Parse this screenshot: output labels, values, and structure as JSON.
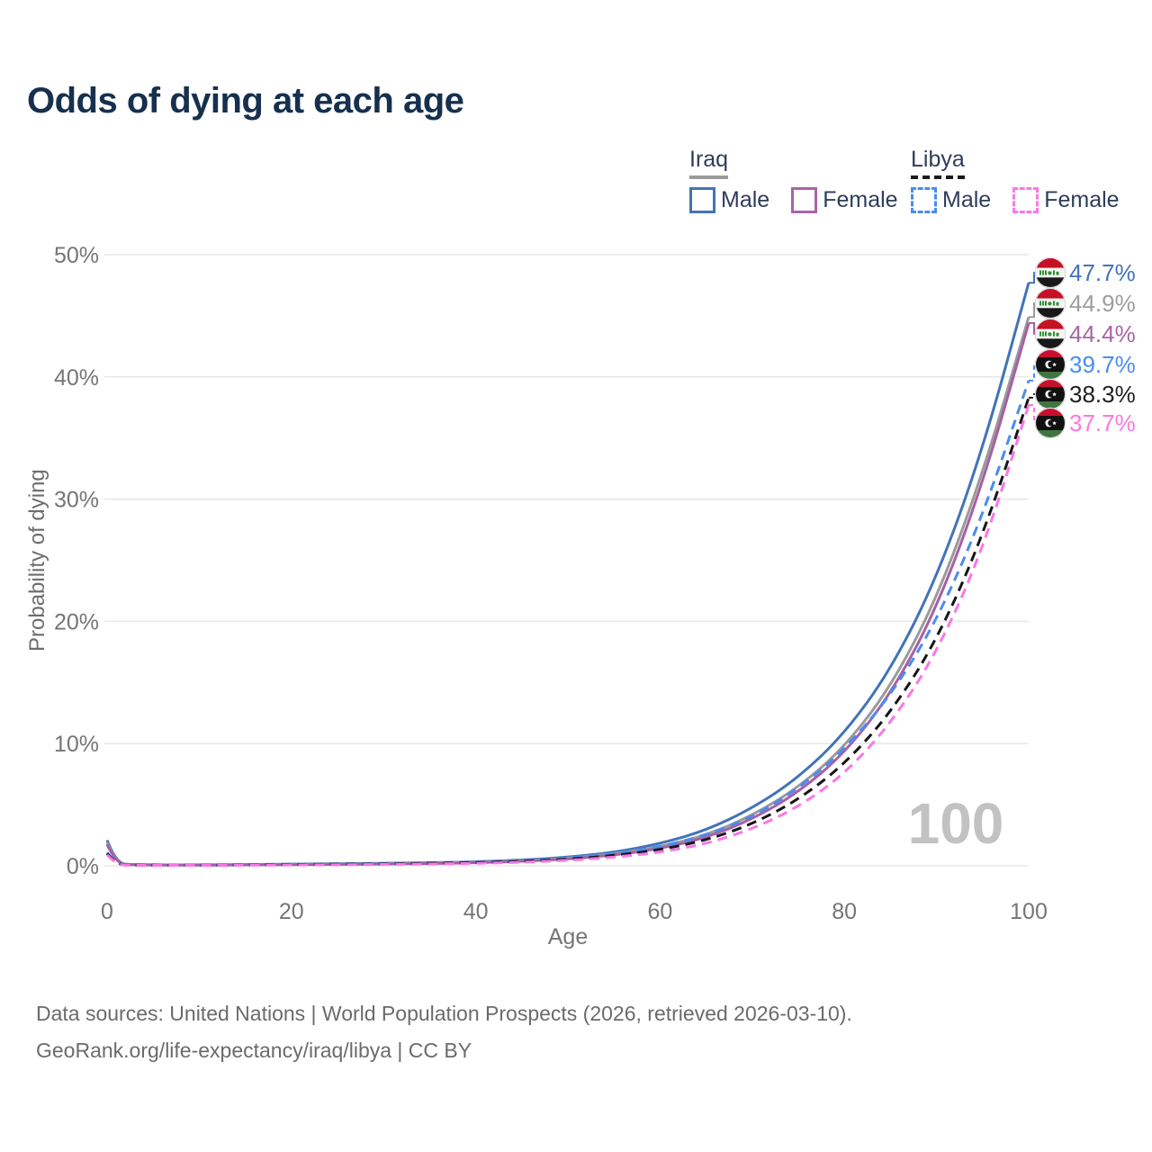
{
  "header": {
    "title": "Odds of dying at each age"
  },
  "legend": {
    "groups": [
      {
        "label": "Iraq",
        "underline_style": "solid",
        "underline_color": "#9b9b9b",
        "items": [
          {
            "label": "Male",
            "color": "#4273b8",
            "style": "solid"
          },
          {
            "label": "Female",
            "color": "#aa64a6",
            "style": "solid"
          }
        ]
      },
      {
        "label": "Libya",
        "underline_style": "dashed",
        "underline_color": "#1a1a1a",
        "items": [
          {
            "label": "Male",
            "color": "#4a8cf0",
            "style": "dashed"
          },
          {
            "label": "Female",
            "color": "#fb78e4",
            "style": "dashed"
          }
        ]
      }
    ]
  },
  "chart_data": {
    "type": "line",
    "title": "Odds of dying at each age",
    "xlabel": "Age",
    "ylabel": "Probability of dying",
    "xlim": [
      0,
      100
    ],
    "ylim": [
      0,
      50
    ],
    "x_ticks": [
      0,
      20,
      40,
      60,
      80,
      100
    ],
    "y_tick_values": [
      0,
      10,
      20,
      30,
      40,
      50
    ],
    "y_tick_labels": [
      "0%",
      "10%",
      "20%",
      "30%",
      "40%",
      "50%"
    ],
    "grid": "horizontal",
    "legend_position": "top-right",
    "watermark": "100",
    "ages": [
      0,
      1,
      3,
      5,
      10,
      15,
      20,
      25,
      30,
      35,
      40,
      45,
      50,
      55,
      60,
      65,
      70,
      75,
      80,
      85,
      90,
      95,
      100
    ],
    "series": [
      {
        "name": "Iraq Male",
        "country": "Iraq",
        "sex": "male",
        "line_style": "solid",
        "color": "#4273b8",
        "label_color": "#4273b8",
        "end_label": "47.7%",
        "end_value": 47.7,
        "values": [
          2.1,
          0.16,
          0.1,
          0.08,
          0.07,
          0.1,
          0.14,
          0.17,
          0.2,
          0.25,
          0.33,
          0.47,
          0.7,
          1.1,
          1.8,
          2.9,
          4.7,
          7.2,
          10.8,
          16.0,
          23.5,
          34.0,
          47.7
        ]
      },
      {
        "name": "Iraq Both sexes",
        "country": "Iraq",
        "sex": "both",
        "line_style": "solid",
        "color": "#9a9a9a",
        "label_color": "#9e9e9e",
        "end_label": "44.9%",
        "end_value": 44.9,
        "values": [
          1.9,
          0.14,
          0.09,
          0.07,
          0.06,
          0.09,
          0.12,
          0.14,
          0.17,
          0.22,
          0.29,
          0.41,
          0.62,
          0.97,
          1.55,
          2.5,
          4.1,
          6.4,
          9.7,
          14.6,
          21.8,
          32.0,
          44.9
        ]
      },
      {
        "name": "Iraq Female",
        "country": "Iraq",
        "sex": "female",
        "line_style": "solid",
        "color": "#a75fa4",
        "label_color": "#aa64a6",
        "end_label": "44.4%",
        "end_value": 44.4,
        "values": [
          1.75,
          0.12,
          0.08,
          0.06,
          0.05,
          0.07,
          0.09,
          0.11,
          0.14,
          0.18,
          0.25,
          0.36,
          0.55,
          0.87,
          1.4,
          2.3,
          3.8,
          6.0,
          9.2,
          14.0,
          21.0,
          31.2,
          44.4
        ]
      },
      {
        "name": "Libya Male",
        "country": "Libya",
        "sex": "male",
        "line_style": "dashed",
        "color": "#4a8cf0",
        "label_color": "#4a8cf0",
        "end_label": "39.7%",
        "end_value": 39.7,
        "values": [
          1.1,
          0.09,
          0.06,
          0.05,
          0.05,
          0.08,
          0.12,
          0.15,
          0.18,
          0.23,
          0.3,
          0.42,
          0.63,
          0.98,
          1.55,
          2.5,
          4.0,
          6.3,
          9.5,
          13.9,
          20.0,
          28.6,
          39.7
        ]
      },
      {
        "name": "Libya Both sexes",
        "country": "Libya",
        "sex": "both",
        "line_style": "dashed",
        "color": "#161616",
        "label_color": "#1f1f1f",
        "end_label": "38.3%",
        "end_value": 38.3,
        "values": [
          1.0,
          0.08,
          0.05,
          0.05,
          0.04,
          0.07,
          0.1,
          0.13,
          0.15,
          0.2,
          0.26,
          0.36,
          0.54,
          0.83,
          1.3,
          2.1,
          3.4,
          5.4,
          8.3,
          12.5,
          18.4,
          26.9,
          38.3
        ]
      },
      {
        "name": "Libya Female",
        "country": "Libya",
        "sex": "female",
        "line_style": "dashed",
        "color": "#fb76e4",
        "label_color": "#fb78e4",
        "end_label": "37.7%",
        "end_value": 37.7,
        "values": [
          0.9,
          0.07,
          0.05,
          0.04,
          0.04,
          0.05,
          0.07,
          0.09,
          0.11,
          0.15,
          0.2,
          0.29,
          0.44,
          0.7,
          1.1,
          1.8,
          3.0,
          4.8,
          7.5,
          11.6,
          17.4,
          25.8,
          37.7
        ]
      }
    ],
    "flag_colors": {
      "iraq": {
        "red": "#c51025",
        "white": "#f4f4f4",
        "black": "#191919",
        "green": "#2f8f2f"
      },
      "libya": {
        "red": "#c8102e",
        "black": "#111111",
        "green": "#3e7540",
        "white": "#ffffff"
      }
    }
  },
  "footer": {
    "line1": "Data sources: United Nations | World Population Prospects (2026, retrieved 2026-03-10).",
    "line2": "GeoRank.org/life-expectancy/iraq/libya | CC BY"
  }
}
